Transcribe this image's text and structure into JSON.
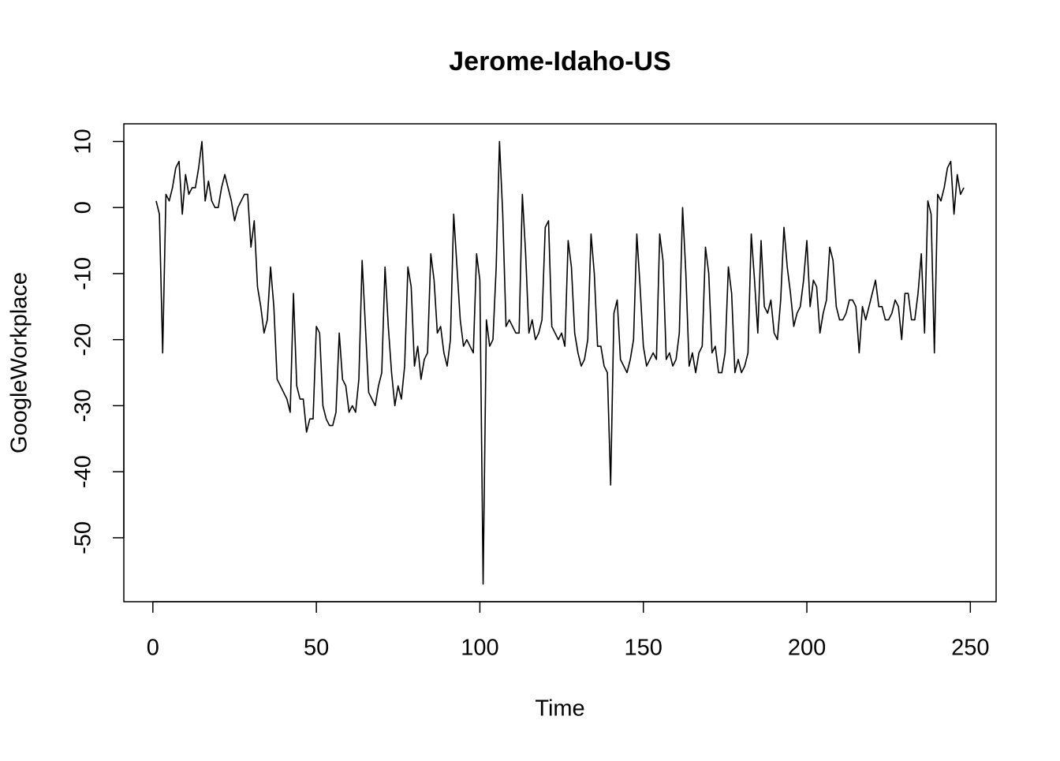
{
  "chart_data": {
    "type": "line",
    "title": "Jerome-Idaho-US",
    "x_label": "Time",
    "y_label": "GoogleWorkplace",
    "color": "#000000",
    "x": [
      1,
      2,
      3,
      4,
      5,
      6,
      7,
      8,
      9,
      10,
      11,
      12,
      13,
      14,
      15,
      16,
      17,
      18,
      19,
      20,
      21,
      22,
      23,
      24,
      25,
      26,
      27,
      28,
      29,
      30,
      31,
      32,
      33,
      34,
      35,
      36,
      37,
      38,
      39,
      40,
      41,
      42,
      43,
      44,
      45,
      46,
      47,
      48,
      49,
      50,
      51,
      52,
      53,
      54,
      55,
      56,
      57,
      58,
      59,
      60,
      61,
      62,
      63,
      64,
      65,
      66,
      67,
      68,
      69,
      70,
      71,
      72,
      73,
      74,
      75,
      76,
      77,
      78,
      79,
      80,
      81,
      82,
      83,
      84,
      85,
      86,
      87,
      88,
      89,
      90,
      91,
      92,
      93,
      94,
      95,
      96,
      97,
      98,
      99,
      100,
      101,
      102,
      103,
      104,
      105,
      106,
      107,
      108,
      109,
      110,
      111,
      112,
      113,
      114,
      115,
      116,
      117,
      118,
      119,
      120,
      121,
      122,
      123,
      124,
      125,
      126,
      127,
      128,
      129,
      130,
      131,
      132,
      133,
      134,
      135,
      136,
      137,
      138,
      139,
      140,
      141,
      142,
      143,
      144,
      145,
      146,
      147,
      148,
      149,
      150,
      151,
      152,
      153,
      154,
      155,
      156,
      157,
      158,
      159,
      160,
      161,
      162,
      163,
      164,
      165,
      166,
      167,
      168,
      169,
      170,
      171,
      172,
      173,
      174,
      175,
      176,
      177,
      178,
      179,
      180,
      181,
      182,
      183,
      184,
      185,
      186,
      187,
      188,
      189,
      190,
      191,
      192,
      193,
      194,
      195,
      196,
      197,
      198,
      199,
      200,
      201,
      202,
      203,
      204,
      205,
      206,
      207,
      208,
      209,
      210,
      211,
      212,
      213,
      214,
      215,
      216,
      217,
      218,
      219,
      220,
      221,
      222,
      223,
      224,
      225,
      226,
      227,
      228,
      229,
      230,
      231,
      232,
      233,
      234,
      235,
      236,
      237,
      238,
      239,
      240,
      241,
      242,
      243,
      244,
      245,
      246,
      247,
      248
    ],
    "values": [
      1,
      -1,
      -22,
      2,
      1,
      3,
      6,
      7,
      -1,
      5,
      2,
      3,
      3,
      6,
      10,
      1,
      4,
      1,
      0,
      0,
      3,
      5,
      3,
      1,
      -2,
      0,
      1,
      2,
      2,
      -6,
      -2,
      -12,
      -15,
      -19,
      -17,
      -9,
      -15,
      -26,
      -27,
      -28,
      -29,
      -31,
      -13,
      -27,
      -29,
      -29,
      -34,
      -32,
      -32,
      -18,
      -19,
      -30,
      -32,
      -33,
      -33,
      -31,
      -19,
      -26,
      -27,
      -31,
      -30,
      -31,
      -26,
      -8,
      -18,
      -28,
      -29,
      -30,
      -27,
      -25,
      -9,
      -18,
      -25,
      -30,
      -27,
      -29,
      -24,
      -9,
      -12,
      -24,
      -21,
      -26,
      -23,
      -22,
      -7,
      -11,
      -19,
      -18,
      -22,
      -24,
      -20,
      -1,
      -9,
      -17,
      -21,
      -20,
      -21,
      -22,
      -7,
      -11,
      -57,
      -17,
      -21,
      -20,
      -9,
      10,
      -1,
      -18,
      -17,
      -18,
      -19,
      -19,
      2,
      -7,
      -19,
      -17,
      -20,
      -19,
      -17,
      -3,
      -2,
      -18,
      -19,
      -20,
      -19,
      -21,
      -5,
      -9,
      -19,
      -22,
      -24,
      -23,
      -20,
      -4,
      -10,
      -21,
      -21,
      -24,
      -25,
      -42,
      -16,
      -14,
      -23,
      -24,
      -25,
      -23,
      -20,
      -4,
      -12,
      -21,
      -24,
      -23,
      -22,
      -23,
      -4,
      -8,
      -23,
      -22,
      -24,
      -23,
      -19,
      0,
      -10,
      -24,
      -22,
      -25,
      -22,
      -21,
      -6,
      -10,
      -22,
      -21,
      -25,
      -25,
      -22,
      -9,
      -13,
      -25,
      -23,
      -25,
      -24,
      -22,
      -4,
      -11,
      -19,
      -5,
      -15,
      -16,
      -14,
      -19,
      -20,
      -14,
      -3,
      -9,
      -13,
      -18,
      -16,
      -15,
      -11,
      -5,
      -15,
      -11,
      -12,
      -19,
      -16,
      -14,
      -6,
      -8,
      -15,
      -17,
      -17,
      -16,
      -14,
      -14,
      -15,
      -22,
      -15,
      -17,
      -15,
      -13,
      -11,
      -15,
      -15,
      -17,
      -17,
      -16,
      -14,
      -15,
      -20,
      -13,
      -13,
      -17,
      -17,
      -13,
      -7,
      -19,
      1,
      -1,
      -22,
      2,
      1,
      3,
      6,
      7,
      -1,
      5,
      2,
      3
    ],
    "xlim": [
      -8.88,
      257.88
    ],
    "ylim": [
      -59.68,
      12.68
    ],
    "xticks": [
      0,
      50,
      100,
      150,
      200,
      250
    ],
    "yticks": [
      -50,
      -40,
      -30,
      -20,
      -10,
      0,
      10
    ]
  }
}
